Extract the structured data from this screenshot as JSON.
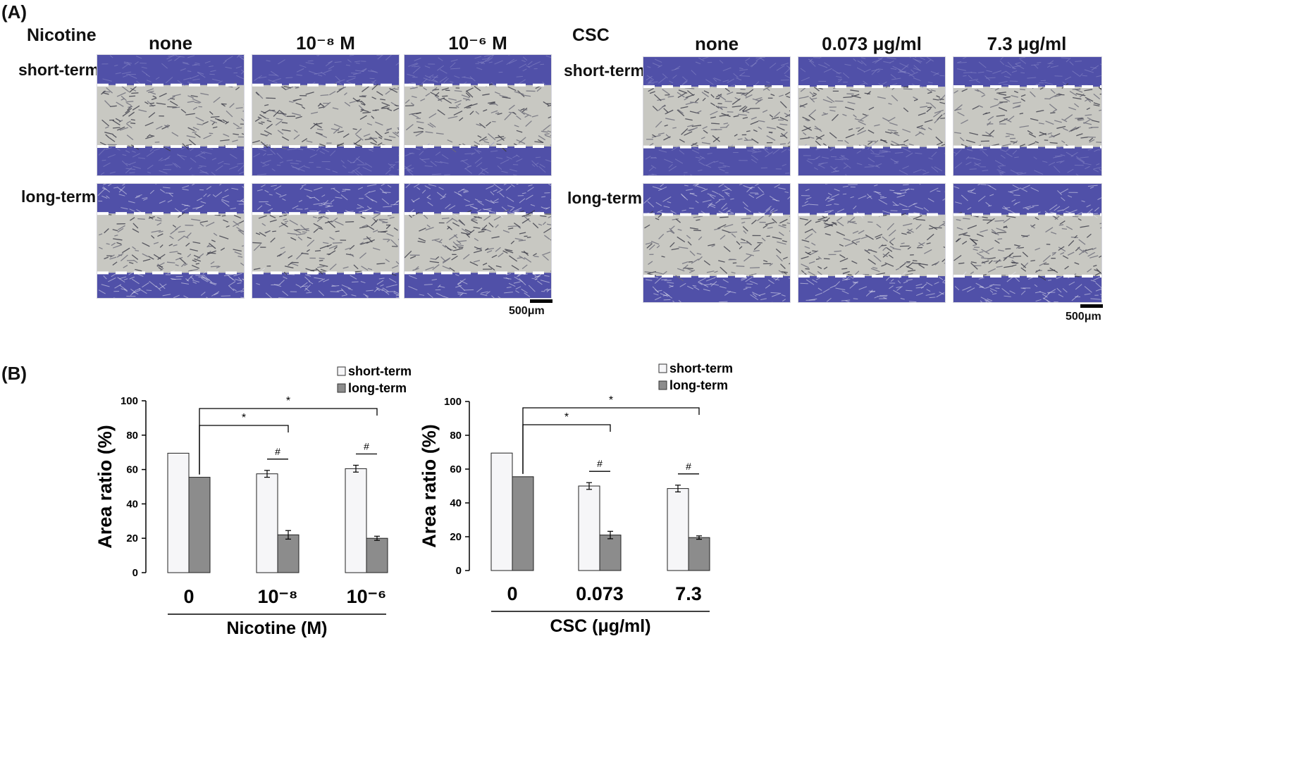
{
  "panel_a": {
    "label": "(A)",
    "nicotine": {
      "title": "Nicotine",
      "columns": [
        "none",
        "10⁻⁸ M",
        "10⁻⁶ M"
      ],
      "rows": [
        "short-term",
        "long-term"
      ],
      "scale_bar": "500μm"
    },
    "csc": {
      "title": "CSC",
      "columns": [
        "none",
        "0.073 μg/ml",
        "7.3 μg/ml"
      ],
      "rows": [
        "short-term",
        "long-term"
      ],
      "scale_bar": "500μm"
    },
    "image_colors": {
      "cells": "#5050a8",
      "gap": "#c8c8c2",
      "lines": "#ffffff"
    }
  },
  "panel_b": {
    "label": "(B)"
  },
  "chart_data": [
    {
      "type": "bar",
      "title": "",
      "categories": [
        "0",
        "10⁻⁸",
        "10⁻⁶"
      ],
      "series": [
        {
          "name": "short-term",
          "values": [
            69.5,
            57.5,
            60.5
          ],
          "errors": [
            0,
            2,
            2
          ],
          "color": "#f6f6f8"
        },
        {
          "name": "long-term",
          "values": [
            55.5,
            22,
            20
          ],
          "errors": [
            0,
            2.5,
            1.2
          ],
          "color": "#8c8c8c"
        }
      ],
      "xlabel": "Nicotine (M)",
      "ylabel": "Area ratio (%)",
      "ylim": [
        0,
        100
      ],
      "yticks": [
        0,
        20,
        40,
        60,
        80,
        100
      ],
      "legend": "top-right",
      "annotations": [
        {
          "type": "bracket",
          "text": "*",
          "from": "0",
          "to": "10⁻⁸"
        },
        {
          "type": "bracket",
          "text": "*",
          "from": "0",
          "to": "10⁻⁶"
        },
        {
          "type": "pair",
          "text": "#",
          "category": "10⁻⁸"
        },
        {
          "type": "pair",
          "text": "#",
          "category": "10⁻⁶"
        }
      ]
    },
    {
      "type": "bar",
      "title": "",
      "categories": [
        "0",
        "0.073",
        "7.3"
      ],
      "series": [
        {
          "name": "short-term",
          "values": [
            69.5,
            50,
            48.5
          ],
          "errors": [
            0,
            2,
            2
          ],
          "color": "#f6f6f8"
        },
        {
          "name": "long-term",
          "values": [
            55.5,
            21,
            19.5
          ],
          "errors": [
            0,
            2.2,
            1
          ],
          "color": "#8c8c8c"
        }
      ],
      "xlabel": "CSC (μg/ml)",
      "ylabel": "Area ratio (%)",
      "ylim": [
        0,
        100
      ],
      "yticks": [
        0,
        20,
        40,
        60,
        80,
        100
      ],
      "legend": "top-right",
      "annotations": [
        {
          "type": "bracket",
          "text": "*",
          "from": "0",
          "to": "0.073"
        },
        {
          "type": "bracket",
          "text": "*",
          "from": "0",
          "to": "7.3"
        },
        {
          "type": "pair",
          "text": "#",
          "category": "0.073"
        },
        {
          "type": "pair",
          "text": "#",
          "category": "7.3"
        }
      ]
    }
  ]
}
